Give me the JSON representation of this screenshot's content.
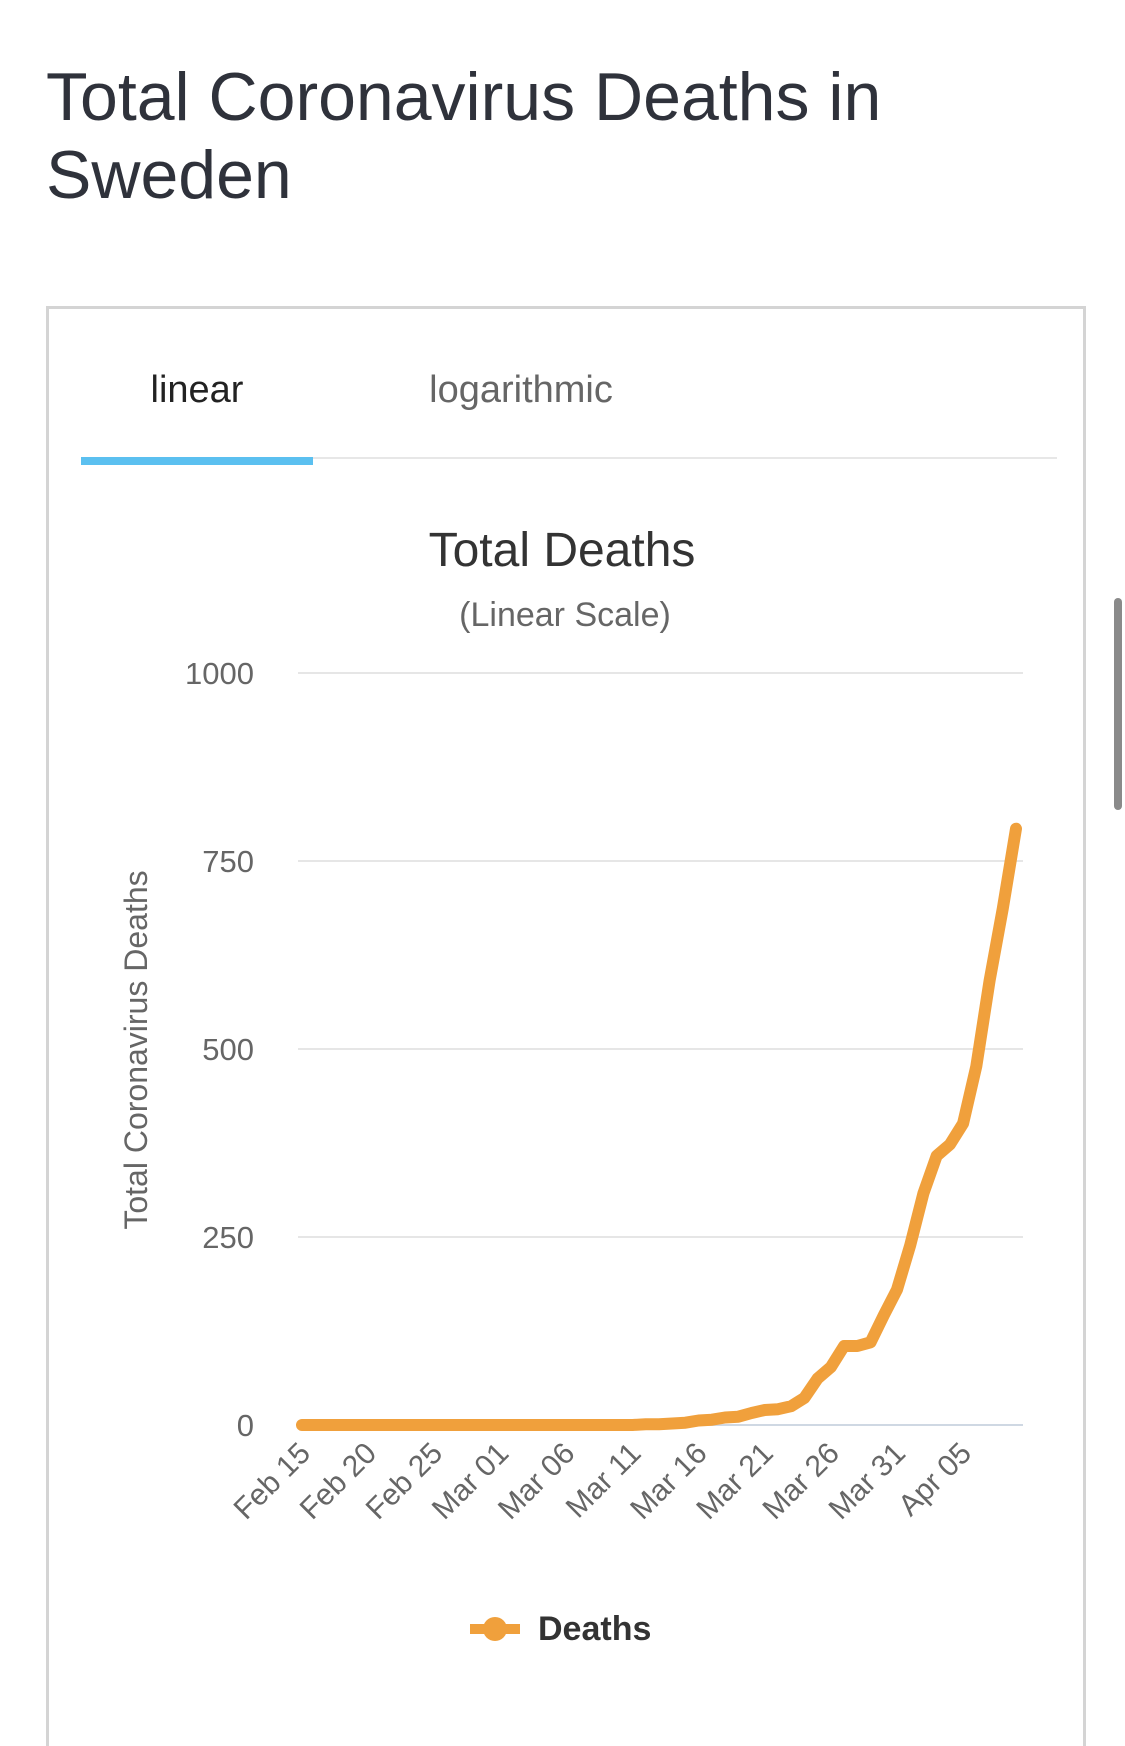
{
  "page": {
    "title": "Total Coronavirus Deaths in Sweden"
  },
  "tabs": [
    {
      "label": "linear",
      "active": true
    },
    {
      "label": "logarithmic",
      "active": false
    }
  ],
  "colors": {
    "series": "#f0a03c",
    "tab_underline": "#5bc0f0",
    "grid": "#e6e6e6"
  },
  "chart_data": {
    "type": "line",
    "title": "Total Deaths",
    "subtitle": "(Linear Scale)",
    "xlabel": "",
    "ylabel": "Total Coronavirus Deaths",
    "ylim": [
      0,
      1000
    ],
    "yticks": [
      "0",
      "250",
      "500",
      "750",
      "1000"
    ],
    "x_tick_labels": [
      "Feb 15",
      "Feb 20",
      "Feb 25",
      "Mar 01",
      "Mar 06",
      "Mar 11",
      "Mar 16",
      "Mar 21",
      "Mar 26",
      "Mar 31",
      "Apr 05"
    ],
    "grid": true,
    "legend_position": "bottom",
    "x": [
      "Feb 15",
      "Feb 16",
      "Feb 17",
      "Feb 18",
      "Feb 19",
      "Feb 20",
      "Feb 21",
      "Feb 22",
      "Feb 23",
      "Feb 24",
      "Feb 25",
      "Feb 26",
      "Feb 27",
      "Feb 28",
      "Feb 29",
      "Mar 01",
      "Mar 02",
      "Mar 03",
      "Mar 04",
      "Mar 05",
      "Mar 06",
      "Mar 07",
      "Mar 08",
      "Mar 09",
      "Mar 10",
      "Mar 11",
      "Mar 12",
      "Mar 13",
      "Mar 14",
      "Mar 15",
      "Mar 16",
      "Mar 17",
      "Mar 18",
      "Mar 19",
      "Mar 20",
      "Mar 21",
      "Mar 22",
      "Mar 23",
      "Mar 24",
      "Mar 25",
      "Mar 26",
      "Mar 27",
      "Mar 28",
      "Mar 29",
      "Mar 30",
      "Mar 31",
      "Apr 01",
      "Apr 02",
      "Apr 03",
      "Apr 04",
      "Apr 05",
      "Apr 06",
      "Apr 07",
      "Apr 08",
      "Apr 09"
    ],
    "series": [
      {
        "name": "Deaths",
        "values": [
          0,
          0,
          0,
          0,
          0,
          0,
          0,
          0,
          0,
          0,
          0,
          0,
          0,
          0,
          0,
          0,
          0,
          0,
          0,
          0,
          0,
          0,
          0,
          0,
          0,
          0,
          1,
          1,
          2,
          3,
          6,
          7,
          10,
          11,
          16,
          20,
          21,
          25,
          36,
          62,
          77,
          105,
          105,
          110,
          146,
          180,
          239,
          308,
          358,
          373,
          401,
          477,
          591,
          687,
          793
        ]
      }
    ]
  }
}
